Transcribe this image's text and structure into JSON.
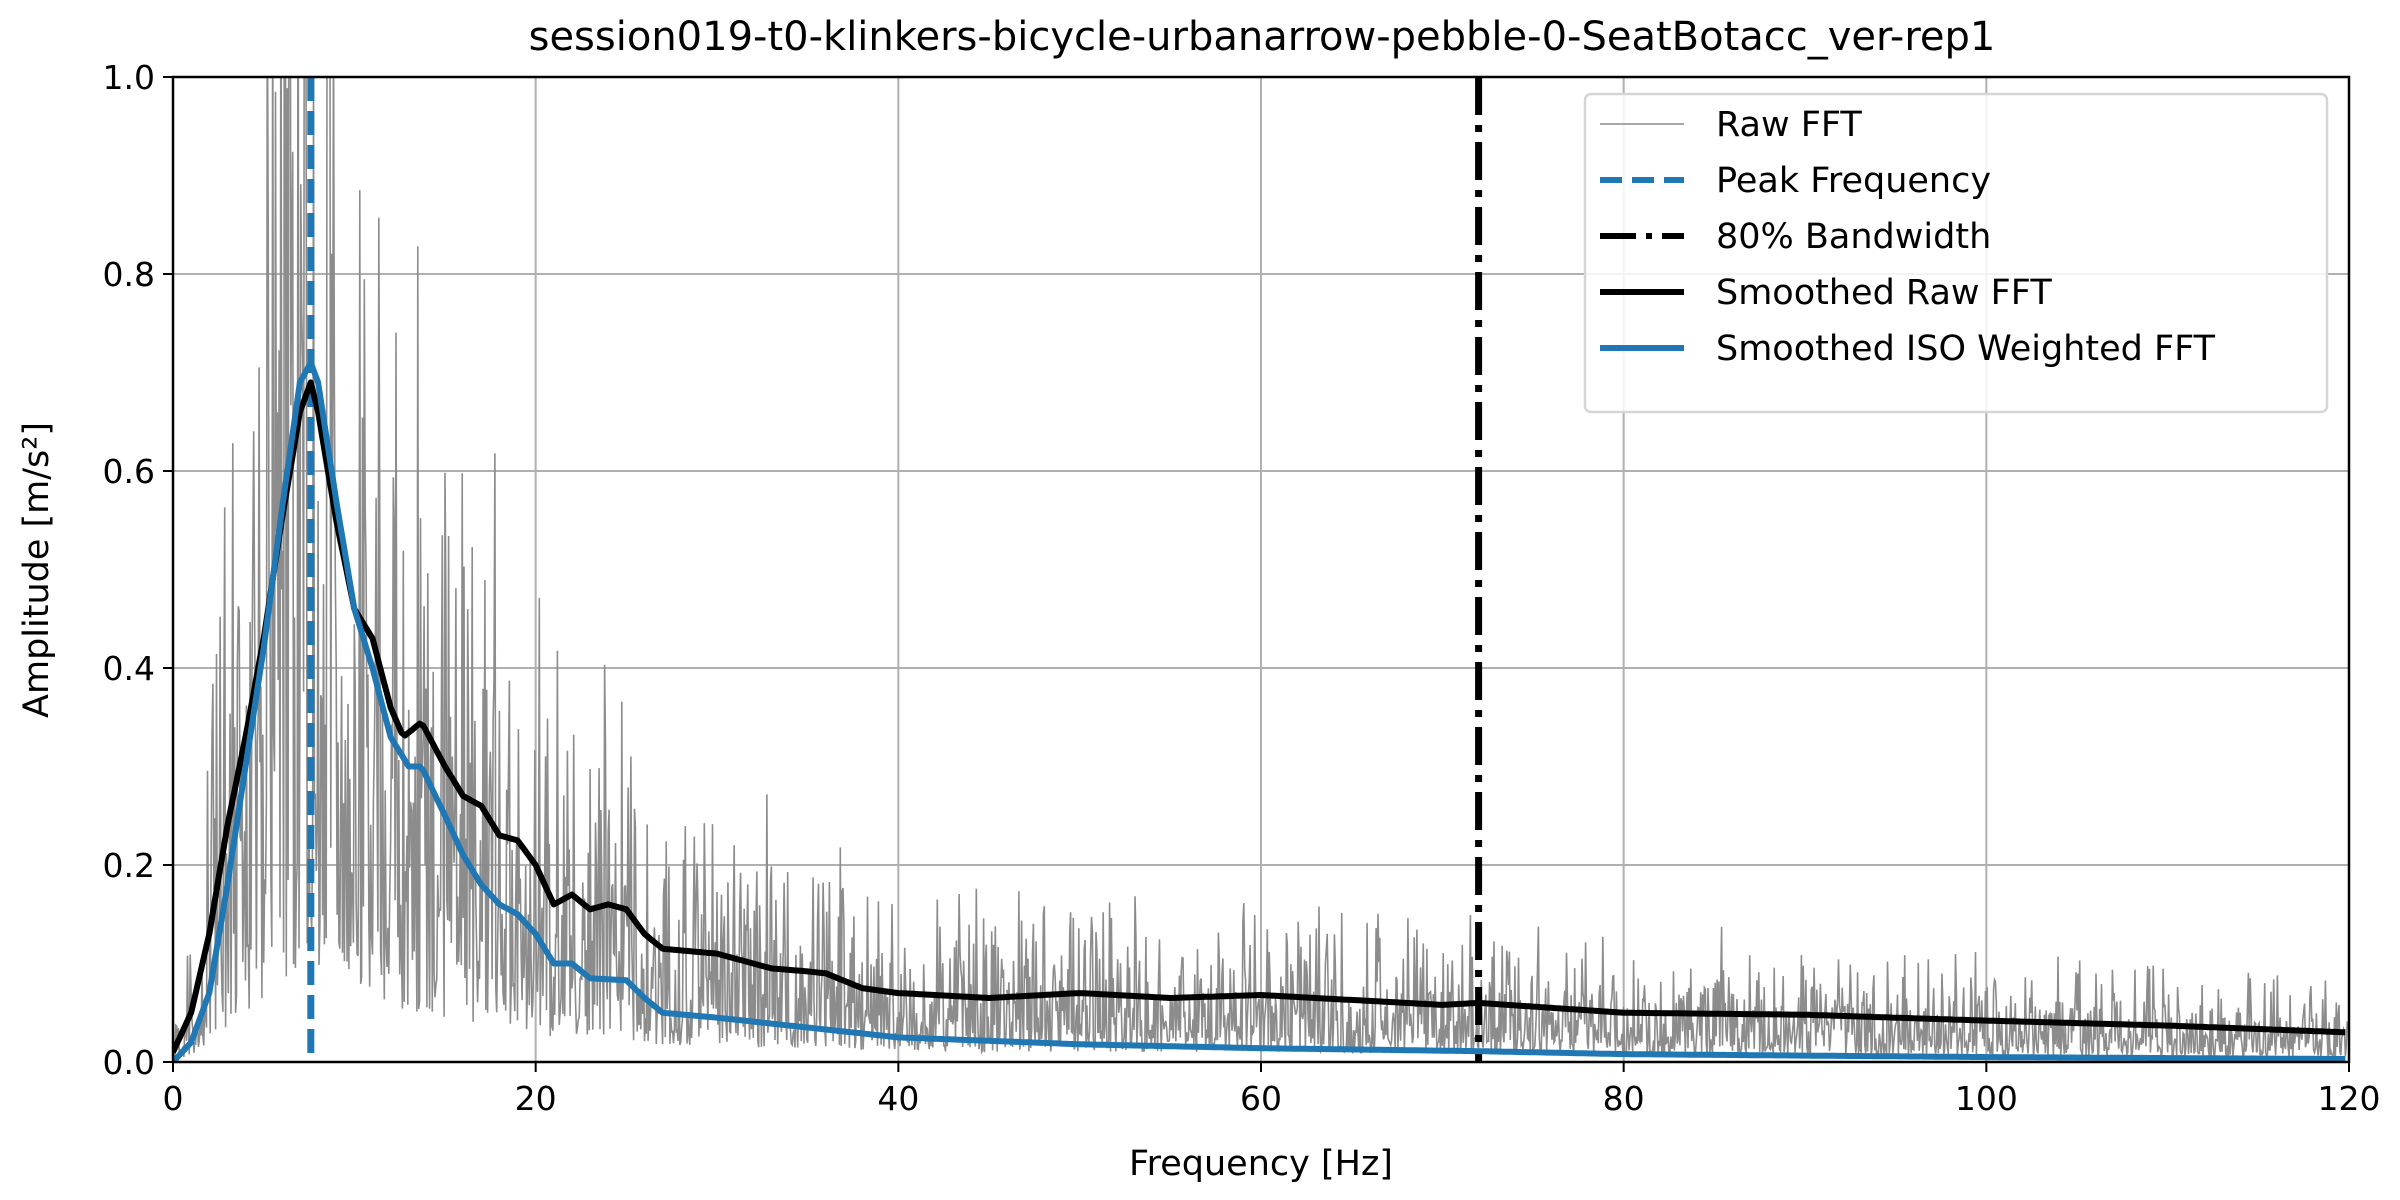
{
  "chart_data": {
    "type": "line",
    "title": "session019-t0-klinkers-bicycle-urbanarrow-pebble-0-SeatBotacc_ver-rep1",
    "xlabel": "Frequency [Hz]",
    "ylabel": "Amplitude [m/s²]",
    "xlim": [
      0,
      120
    ],
    "ylim": [
      0,
      1.0
    ],
    "xticks": [
      0,
      20,
      40,
      60,
      80,
      100,
      120
    ],
    "xtick_labels": [
      "0",
      "20",
      "40",
      "60",
      "80",
      "100",
      "120"
    ],
    "yticks": [
      0,
      0.2,
      0.4,
      0.6,
      0.8,
      1.0
    ],
    "ytick_labels": [
      "0.0",
      "0.2",
      "0.4",
      "0.6",
      "0.8",
      "1.0"
    ],
    "grid": true,
    "legend_position": "top-right",
    "colors": {
      "raw": "#8c8c8c",
      "blue": "#1f77b4",
      "black": "#000000",
      "grid": "#b0b0b0"
    },
    "peak_frequency": 7.6,
    "bandwidth_80": 72,
    "legend": [
      "Raw FFT",
      "Peak Frequency",
      "80% Bandwidth",
      "Smoothed Raw FFT",
      "Smoothed ISO Weighted FFT"
    ],
    "raw_fft": {
      "description_note": "noisy trace around smoothed curve",
      "resolution_hz": 0.05,
      "seed": 19
    },
    "series": [
      {
        "name": "Smoothed Raw FFT",
        "x": [
          0,
          1,
          2,
          3,
          4,
          5,
          6,
          7,
          7.6,
          8,
          9,
          10,
          11,
          12,
          12.7,
          13.7,
          15,
          16,
          17,
          18,
          19,
          20,
          21,
          22,
          23,
          24,
          25,
          26,
          27,
          30,
          33,
          35,
          36,
          38,
          40,
          45,
          50,
          55,
          60,
          65,
          70,
          72,
          80,
          90,
          100,
          110,
          120
        ],
        "y": [
          0.01,
          0.05,
          0.13,
          0.24,
          0.33,
          0.43,
          0.55,
          0.66,
          0.69,
          0.66,
          0.55,
          0.46,
          0.43,
          0.36,
          0.33,
          0.345,
          0.3,
          0.27,
          0.26,
          0.23,
          0.225,
          0.2,
          0.16,
          0.17,
          0.155,
          0.16,
          0.155,
          0.13,
          0.115,
          0.11,
          0.095,
          0.092,
          0.09,
          0.075,
          0.07,
          0.065,
          0.07,
          0.065,
          0.068,
          0.063,
          0.058,
          0.06,
          0.05,
          0.048,
          0.042,
          0.037,
          0.03
        ]
      },
      {
        "name": "Smoothed ISO Weighted FFT",
        "x": [
          0,
          1,
          2,
          3,
          4,
          5,
          6,
          7,
          7.6,
          8,
          9,
          10,
          11,
          12,
          13,
          13.7,
          15,
          16,
          17,
          18,
          19,
          20,
          21,
          22,
          23,
          25,
          26,
          27,
          30,
          35,
          40,
          50,
          60,
          72,
          80,
          100,
          120
        ],
        "y": [
          0.0,
          0.02,
          0.07,
          0.18,
          0.3,
          0.42,
          0.56,
          0.69,
          0.71,
          0.69,
          0.57,
          0.46,
          0.4,
          0.33,
          0.3,
          0.3,
          0.25,
          0.21,
          0.18,
          0.16,
          0.15,
          0.13,
          0.1,
          0.1,
          0.085,
          0.083,
          0.065,
          0.05,
          0.045,
          0.035,
          0.025,
          0.018,
          0.014,
          0.011,
          0.008,
          0.005,
          0.003
        ]
      }
    ]
  }
}
